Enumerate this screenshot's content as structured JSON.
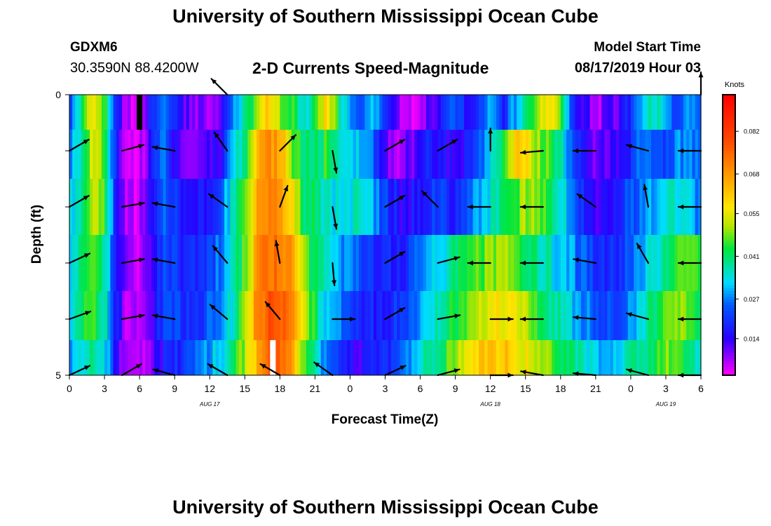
{
  "header": {
    "title": "University of Southern Mississippi Ocean Cube",
    "station_name": "GDXM6",
    "station_coords": "30.3590N 88.4200W",
    "chart_title": "2-D Currents Speed-Magnitude",
    "model_label": "Model Start Time",
    "model_time": "08/17/2019 Hour 03"
  },
  "footer": {
    "title": "University of Southern Mississippi Ocean Cube"
  },
  "chart_data": {
    "type": "heatmap",
    "title": "2-D Currents Speed-Magnitude",
    "xlabel": "Forecast Time(Z)",
    "ylabel": "Depth (ft)",
    "x_tick_labels": [
      "0",
      "3",
      "6",
      "9",
      "12",
      "15",
      "18",
      "21",
      "0",
      "3",
      "6",
      "9",
      "12",
      "15",
      "18",
      "21",
      "0",
      "3",
      "6"
    ],
    "day_labels": [
      {
        "label": "AUG 17",
        "hour": 12
      },
      {
        "label": "AUG 18",
        "hour": 36
      },
      {
        "label": "AUG 19",
        "hour": 51
      }
    ],
    "x_range_hours": [
      0,
      54
    ],
    "y_tick_labels": [
      "0",
      "5"
    ],
    "y_range_ft": [
      0,
      5
    ],
    "colorbar": {
      "unit": "Knots",
      "tick_labels": [
        "0.014",
        "0.027",
        "0.041",
        "0.055",
        "0.068",
        "0.082"
      ],
      "range": [
        0.002,
        0.094
      ]
    },
    "depth_layers_ft": [
      0.25,
      1.0,
      2.0,
      3.0,
      4.0,
      4.75
    ],
    "layer_speed_profiles": [
      [
        [
          0,
          0.024
        ],
        [
          1,
          0.038
        ],
        [
          2,
          0.058
        ],
        [
          3,
          0.046
        ],
        [
          4,
          0.018
        ],
        [
          5,
          0.005
        ],
        [
          6,
          0.003
        ],
        [
          7,
          0.018
        ],
        [
          8,
          0.028
        ],
        [
          9,
          0.016
        ],
        [
          10,
          0.012
        ],
        [
          11,
          0.008
        ],
        [
          12,
          0.006
        ],
        [
          13,
          0.01
        ],
        [
          14,
          0.03
        ],
        [
          15,
          0.036
        ],
        [
          16,
          0.05
        ],
        [
          17,
          0.062
        ],
        [
          18,
          0.05
        ],
        [
          19,
          0.044
        ],
        [
          20,
          0.034
        ],
        [
          21,
          0.04
        ],
        [
          22,
          0.06
        ],
        [
          23,
          0.042
        ],
        [
          24,
          0.028
        ],
        [
          25,
          0.022
        ],
        [
          26,
          0.032
        ],
        [
          27,
          0.016
        ],
        [
          28,
          0.01
        ],
        [
          29,
          0.005
        ],
        [
          30,
          0.008
        ],
        [
          31,
          0.012
        ],
        [
          32,
          0.016
        ],
        [
          33,
          0.026
        ],
        [
          34,
          0.016
        ],
        [
          35,
          0.02
        ],
        [
          36,
          0.032
        ],
        [
          37,
          0.018
        ],
        [
          38,
          0.028
        ],
        [
          39,
          0.04
        ],
        [
          40,
          0.052
        ],
        [
          41,
          0.06
        ],
        [
          42,
          0.048
        ],
        [
          43,
          0.02
        ],
        [
          44,
          0.014
        ],
        [
          45,
          0.006
        ],
        [
          46,
          0.01
        ],
        [
          47,
          0.012
        ],
        [
          48,
          0.02
        ],
        [
          49,
          0.032
        ],
        [
          50,
          0.038
        ],
        [
          51,
          0.028
        ],
        [
          52,
          0.022
        ],
        [
          53,
          0.03
        ],
        [
          54,
          0.026
        ]
      ],
      [
        [
          0,
          0.026
        ],
        [
          1,
          0.036
        ],
        [
          2,
          0.056
        ],
        [
          3,
          0.046
        ],
        [
          4,
          0.018
        ],
        [
          5,
          0.004
        ],
        [
          6,
          0.003
        ],
        [
          7,
          0.016
        ],
        [
          8,
          0.026
        ],
        [
          9,
          0.014
        ],
        [
          10,
          0.012
        ],
        [
          11,
          0.01
        ],
        [
          12,
          0.012
        ],
        [
          13,
          0.014
        ],
        [
          14,
          0.034
        ],
        [
          15,
          0.04
        ],
        [
          16,
          0.06
        ],
        [
          17,
          0.07
        ],
        [
          18,
          0.066
        ],
        [
          19,
          0.05
        ],
        [
          20,
          0.038
        ],
        [
          21,
          0.04
        ],
        [
          22,
          0.044
        ],
        [
          23,
          0.036
        ],
        [
          24,
          0.03
        ],
        [
          25,
          0.032
        ],
        [
          26,
          0.024
        ],
        [
          27,
          0.012
        ],
        [
          28,
          0.008
        ],
        [
          29,
          0.01
        ],
        [
          30,
          0.014
        ],
        [
          31,
          0.018
        ],
        [
          32,
          0.016
        ],
        [
          33,
          0.012
        ],
        [
          34,
          0.018
        ],
        [
          35,
          0.024
        ],
        [
          36,
          0.034
        ],
        [
          37,
          0.04
        ],
        [
          38,
          0.058
        ],
        [
          39,
          0.06
        ],
        [
          40,
          0.05
        ],
        [
          41,
          0.046
        ],
        [
          42,
          0.036
        ],
        [
          43,
          0.024
        ],
        [
          44,
          0.018
        ],
        [
          45,
          0.01
        ],
        [
          46,
          0.012
        ],
        [
          47,
          0.014
        ],
        [
          48,
          0.018
        ],
        [
          49,
          0.03
        ],
        [
          50,
          0.024
        ],
        [
          51,
          0.02
        ],
        [
          52,
          0.03
        ],
        [
          53,
          0.026
        ],
        [
          54,
          0.024
        ]
      ],
      [
        [
          0,
          0.03
        ],
        [
          1,
          0.04
        ],
        [
          2,
          0.052
        ],
        [
          3,
          0.044
        ],
        [
          4,
          0.018
        ],
        [
          5,
          0.005
        ],
        [
          6,
          0.004
        ],
        [
          7,
          0.016
        ],
        [
          8,
          0.024
        ],
        [
          9,
          0.02
        ],
        [
          10,
          0.014
        ],
        [
          11,
          0.016
        ],
        [
          12,
          0.018
        ],
        [
          13,
          0.026
        ],
        [
          14,
          0.036
        ],
        [
          15,
          0.044
        ],
        [
          16,
          0.064
        ],
        [
          17,
          0.072
        ],
        [
          18,
          0.07
        ],
        [
          19,
          0.06
        ],
        [
          20,
          0.04
        ],
        [
          21,
          0.04
        ],
        [
          22,
          0.036
        ],
        [
          23,
          0.032
        ],
        [
          24,
          0.034
        ],
        [
          25,
          0.036
        ],
        [
          26,
          0.028
        ],
        [
          27,
          0.022
        ],
        [
          28,
          0.016
        ],
        [
          29,
          0.014
        ],
        [
          30,
          0.018
        ],
        [
          31,
          0.022
        ],
        [
          32,
          0.02
        ],
        [
          33,
          0.016
        ],
        [
          34,
          0.026
        ],
        [
          35,
          0.03
        ],
        [
          36,
          0.034
        ],
        [
          37,
          0.038
        ],
        [
          38,
          0.046
        ],
        [
          39,
          0.05
        ],
        [
          40,
          0.048
        ],
        [
          41,
          0.044
        ],
        [
          42,
          0.036
        ],
        [
          43,
          0.026
        ],
        [
          44,
          0.02
        ],
        [
          45,
          0.014
        ],
        [
          46,
          0.016
        ],
        [
          47,
          0.018
        ],
        [
          48,
          0.024
        ],
        [
          49,
          0.026
        ],
        [
          50,
          0.03
        ],
        [
          51,
          0.036
        ],
        [
          52,
          0.034
        ],
        [
          53,
          0.03
        ],
        [
          54,
          0.028
        ]
      ],
      [
        [
          0,
          0.028
        ],
        [
          1,
          0.04
        ],
        [
          2,
          0.048
        ],
        [
          3,
          0.04
        ],
        [
          4,
          0.018
        ],
        [
          5,
          0.005
        ],
        [
          6,
          0.004
        ],
        [
          7,
          0.014
        ],
        [
          8,
          0.022
        ],
        [
          9,
          0.02
        ],
        [
          10,
          0.016
        ],
        [
          11,
          0.018
        ],
        [
          12,
          0.022
        ],
        [
          13,
          0.028
        ],
        [
          14,
          0.034
        ],
        [
          15,
          0.046
        ],
        [
          16,
          0.066
        ],
        [
          17,
          0.074
        ],
        [
          18,
          0.074
        ],
        [
          19,
          0.066
        ],
        [
          20,
          0.05
        ],
        [
          21,
          0.04
        ],
        [
          22,
          0.034
        ],
        [
          23,
          0.03
        ],
        [
          24,
          0.028
        ],
        [
          25,
          0.024
        ],
        [
          26,
          0.02
        ],
        [
          27,
          0.018
        ],
        [
          28,
          0.016
        ],
        [
          29,
          0.02
        ],
        [
          30,
          0.026
        ],
        [
          31,
          0.03
        ],
        [
          32,
          0.034
        ],
        [
          33,
          0.04
        ],
        [
          34,
          0.042
        ],
        [
          35,
          0.046
        ],
        [
          36,
          0.048
        ],
        [
          37,
          0.05
        ],
        [
          38,
          0.048
        ],
        [
          39,
          0.044
        ],
        [
          40,
          0.04
        ],
        [
          41,
          0.036
        ],
        [
          42,
          0.032
        ],
        [
          43,
          0.028
        ],
        [
          44,
          0.024
        ],
        [
          45,
          0.02
        ],
        [
          46,
          0.018
        ],
        [
          47,
          0.02
        ],
        [
          48,
          0.024
        ],
        [
          49,
          0.03
        ],
        [
          50,
          0.034
        ],
        [
          51,
          0.04
        ],
        [
          52,
          0.046
        ],
        [
          53,
          0.05
        ],
        [
          54,
          0.04
        ]
      ],
      [
        [
          0,
          0.03
        ],
        [
          1,
          0.04
        ],
        [
          2,
          0.046
        ],
        [
          3,
          0.038
        ],
        [
          4,
          0.016
        ],
        [
          5,
          0.005
        ],
        [
          6,
          0.004
        ],
        [
          7,
          0.012
        ],
        [
          8,
          0.02
        ],
        [
          9,
          0.022
        ],
        [
          10,
          0.018
        ],
        [
          11,
          0.02
        ],
        [
          12,
          0.024
        ],
        [
          13,
          0.03
        ],
        [
          14,
          0.036
        ],
        [
          15,
          0.048
        ],
        [
          16,
          0.07
        ],
        [
          17,
          0.078
        ],
        [
          18,
          0.078
        ],
        [
          19,
          0.07
        ],
        [
          20,
          0.054
        ],
        [
          21,
          0.042
        ],
        [
          22,
          0.032
        ],
        [
          23,
          0.026
        ],
        [
          24,
          0.022
        ],
        [
          25,
          0.02
        ],
        [
          26,
          0.018
        ],
        [
          27,
          0.018
        ],
        [
          28,
          0.02
        ],
        [
          29,
          0.024
        ],
        [
          30,
          0.03
        ],
        [
          31,
          0.034
        ],
        [
          32,
          0.038
        ],
        [
          33,
          0.044
        ],
        [
          34,
          0.048
        ],
        [
          35,
          0.052
        ],
        [
          36,
          0.056
        ],
        [
          37,
          0.058
        ],
        [
          38,
          0.056
        ],
        [
          39,
          0.05
        ],
        [
          40,
          0.044
        ],
        [
          41,
          0.04
        ],
        [
          42,
          0.036
        ],
        [
          43,
          0.032
        ],
        [
          44,
          0.028
        ],
        [
          45,
          0.024
        ],
        [
          46,
          0.022
        ],
        [
          47,
          0.024
        ],
        [
          48,
          0.028
        ],
        [
          49,
          0.034
        ],
        [
          50,
          0.04
        ],
        [
          51,
          0.046
        ],
        [
          52,
          0.05
        ],
        [
          53,
          0.048
        ],
        [
          54,
          0.044
        ]
      ],
      [
        [
          0,
          0.026
        ],
        [
          1,
          0.034
        ],
        [
          2,
          0.04
        ],
        [
          3,
          0.036
        ],
        [
          4,
          0.014
        ],
        [
          5,
          0.004
        ],
        [
          6,
          0.004
        ],
        [
          7,
          0.01
        ],
        [
          8,
          0.016
        ],
        [
          9,
          0.018
        ],
        [
          10,
          0.02
        ],
        [
          11,
          0.026
        ],
        [
          12,
          0.03
        ],
        [
          13,
          0.034
        ],
        [
          14,
          0.04
        ],
        [
          15,
          0.05
        ],
        [
          16,
          0.064
        ],
        [
          17,
          0.074
        ],
        [
          18,
          0.076
        ],
        [
          19,
          0.066
        ],
        [
          20,
          0.05
        ],
        [
          21,
          0.036
        ],
        [
          22,
          0.024
        ],
        [
          23,
          0.02
        ],
        [
          24,
          0.016
        ],
        [
          25,
          0.014
        ],
        [
          26,
          0.016
        ],
        [
          27,
          0.018
        ],
        [
          28,
          0.022
        ],
        [
          29,
          0.028
        ],
        [
          30,
          0.034
        ],
        [
          31,
          0.04
        ],
        [
          32,
          0.044
        ],
        [
          33,
          0.05
        ],
        [
          34,
          0.056
        ],
        [
          35,
          0.06
        ],
        [
          36,
          0.062
        ],
        [
          37,
          0.062
        ],
        [
          38,
          0.06
        ],
        [
          39,
          0.056
        ],
        [
          40,
          0.052
        ],
        [
          41,
          0.048
        ],
        [
          42,
          0.044
        ],
        [
          43,
          0.04
        ],
        [
          44,
          0.036
        ],
        [
          45,
          0.032
        ],
        [
          46,
          0.03
        ],
        [
          47,
          0.032
        ],
        [
          48,
          0.036
        ],
        [
          49,
          0.04
        ],
        [
          50,
          0.044
        ],
        [
          51,
          0.048
        ],
        [
          52,
          0.046
        ],
        [
          53,
          0.04
        ],
        [
          54,
          0.036
        ]
      ]
    ],
    "vector_depths_ft": [
      0,
      1,
      2,
      3,
      4,
      5
    ],
    "vector_hours": [
      0,
      4.5,
      9,
      13.5,
      18,
      22.5,
      27,
      31.5,
      36,
      40.5,
      45,
      49.5,
      54
    ],
    "vectors_direction_deg": [
      [
        null,
        null,
        null,
        315,
        null,
        null,
        null,
        null,
        null,
        null,
        null,
        null,
        0
      ],
      [
        60,
        75,
        280,
        325,
        45,
        170,
        60,
        60,
        0,
        265,
        270,
        285,
        270
      ],
      [
        60,
        80,
        280,
        305,
        20,
        170,
        60,
        315,
        270,
        270,
        305,
        350,
        270
      ],
      [
        65,
        80,
        280,
        320,
        350,
        175,
        60,
        75,
        270,
        270,
        280,
        330,
        270
      ],
      [
        70,
        80,
        280,
        310,
        320,
        90,
        60,
        80,
        90,
        270,
        275,
        285,
        270
      ],
      [
        65,
        60,
        285,
        300,
        300,
        305,
        65,
        75,
        90,
        280,
        275,
        285,
        270
      ]
    ],
    "missing_markers": [
      {
        "hour": 6,
        "depth_ft": 0.25,
        "color": "black"
      },
      {
        "hour": 17.4,
        "depth_ft": 4.75,
        "color": "white"
      }
    ]
  }
}
